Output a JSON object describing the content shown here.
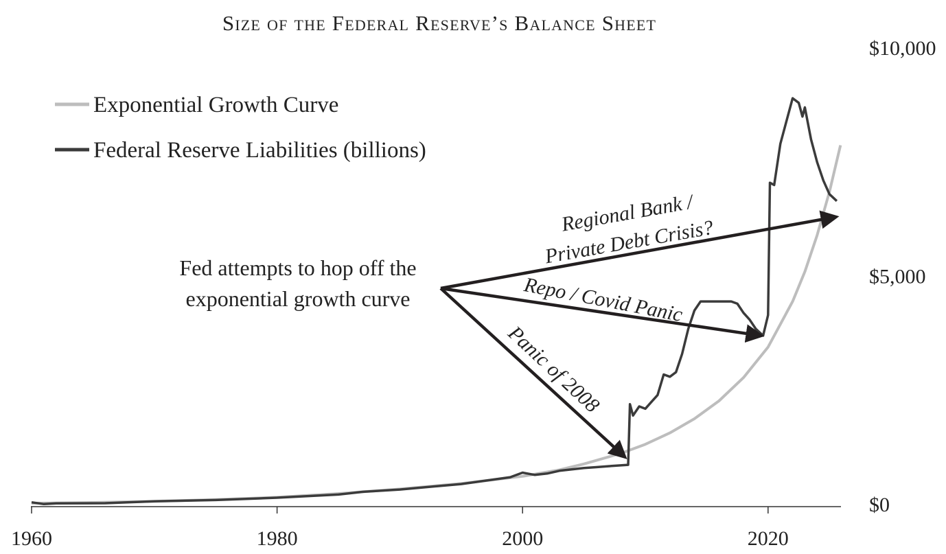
{
  "chart_data": {
    "type": "line",
    "title": "Size of the Federal Reserve’s Balance Sheet",
    "xlabel": "",
    "ylabel": "",
    "xlim": [
      1960,
      2026
    ],
    "ylim": [
      0,
      10000
    ],
    "x_ticks": [
      1960,
      1980,
      2000,
      2020
    ],
    "y_ticks": [
      {
        "value": 0,
        "label": "$0"
      },
      {
        "value": 5000,
        "label": "$5,000"
      },
      {
        "value": 10000,
        "label": "$10,000"
      }
    ],
    "grid": false,
    "legend_placement": "top-left",
    "legend": [
      {
        "label": "Exponential Growth Curve",
        "color": "#bdbdbd"
      },
      {
        "label": "Federal Reserve Liabilities (billions)",
        "color": "#3b3b3b"
      }
    ],
    "series": [
      {
        "name": "Exponential Growth Curve",
        "color": "#bdbdbd",
        "points": [
          [
            1960,
            30
          ],
          [
            1965,
            45
          ],
          [
            1970,
            70
          ],
          [
            1975,
            110
          ],
          [
            1980,
            160
          ],
          [
            1985,
            240
          ],
          [
            1990,
            340
          ],
          [
            1995,
            460
          ],
          [
            2000,
            620
          ],
          [
            2003,
            760
          ],
          [
            2005,
            890
          ],
          [
            2008,
            1120
          ],
          [
            2010,
            1320
          ],
          [
            2012,
            1570
          ],
          [
            2014,
            1880
          ],
          [
            2016,
            2270
          ],
          [
            2018,
            2780
          ],
          [
            2020,
            3450
          ],
          [
            2022,
            4450
          ],
          [
            2023,
            5100
          ],
          [
            2024,
            5900
          ],
          [
            2025,
            6850
          ],
          [
            2025.9,
            7870
          ]
        ]
      },
      {
        "name": "Federal Reserve Liabilities (billions)",
        "color": "#3b3b3b",
        "points": [
          [
            1960,
            50
          ],
          [
            1961,
            10
          ],
          [
            1962,
            25
          ],
          [
            1966,
            30
          ],
          [
            1970,
            70
          ],
          [
            1975,
            100
          ],
          [
            1980,
            150
          ],
          [
            1985,
            220
          ],
          [
            1987,
            280
          ],
          [
            1990,
            330
          ],
          [
            1995,
            450
          ],
          [
            1999,
            600
          ],
          [
            2000,
            700
          ],
          [
            2001,
            650
          ],
          [
            2002,
            680
          ],
          [
            2003,
            740
          ],
          [
            2004,
            770
          ],
          [
            2005,
            800
          ],
          [
            2006,
            820
          ],
          [
            2007,
            840
          ],
          [
            2008.6,
            870
          ],
          [
            2008.75,
            2200
          ],
          [
            2009,
            1950
          ],
          [
            2009.5,
            2150
          ],
          [
            2010,
            2100
          ],
          [
            2010.5,
            2250
          ],
          [
            2011,
            2400
          ],
          [
            2011.5,
            2850
          ],
          [
            2012,
            2800
          ],
          [
            2012.5,
            2900
          ],
          [
            2013,
            3300
          ],
          [
            2013.5,
            3850
          ],
          [
            2014,
            4250
          ],
          [
            2014.5,
            4450
          ],
          [
            2015,
            4450
          ],
          [
            2016,
            4450
          ],
          [
            2017,
            4450
          ],
          [
            2017.5,
            4400
          ],
          [
            2018,
            4200
          ],
          [
            2018.5,
            4050
          ],
          [
            2019,
            3850
          ],
          [
            2019.6,
            3700
          ],
          [
            2020,
            4150
          ],
          [
            2020.15,
            7050
          ],
          [
            2020.5,
            7000
          ],
          [
            2021,
            7900
          ],
          [
            2021.5,
            8400
          ],
          [
            2022,
            8900
          ],
          [
            2022.5,
            8800
          ],
          [
            2022.8,
            8500
          ],
          [
            2023,
            8700
          ],
          [
            2023.5,
            8000
          ],
          [
            2024,
            7500
          ],
          [
            2024.5,
            7100
          ],
          [
            2025,
            6800
          ],
          [
            2025.6,
            6650
          ]
        ]
      }
    ],
    "annotations": [
      {
        "text": "Fed attempts to hop off the",
        "type": "note"
      },
      {
        "text": "exponential growth curve",
        "type": "note"
      },
      {
        "text": "Regional Bank /",
        "type": "arrow",
        "target": [
          2025.5,
          6300
        ]
      },
      {
        "text": "Private Debt Crisis?",
        "type": "arrow",
        "target": [
          2025.5,
          6300
        ]
      },
      {
        "text": "Repo / Covid Panic",
        "type": "arrow",
        "target": [
          2019.4,
          3700
        ]
      },
      {
        "text": "Panic of 2008",
        "type": "arrow",
        "target": [
          2008.3,
          1050
        ]
      }
    ]
  }
}
